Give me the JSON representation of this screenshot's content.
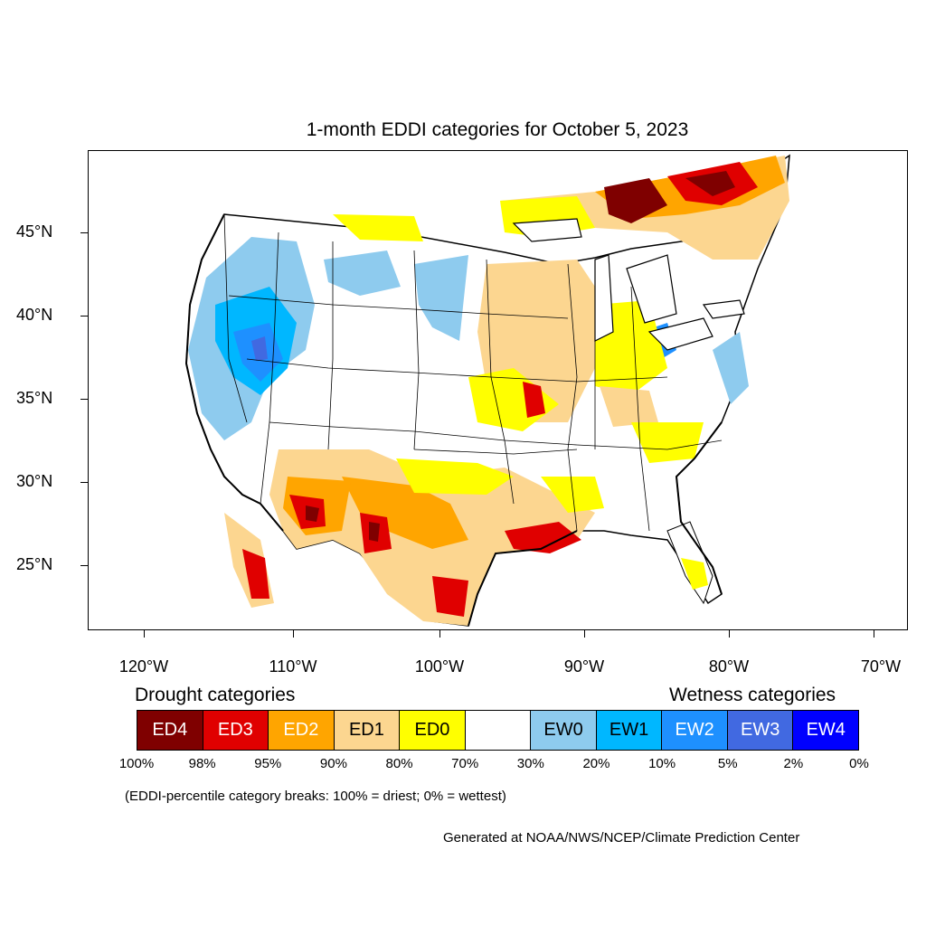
{
  "map": {
    "title": "1-month EDDI categories for October 5, 2023",
    "lat_labels": [
      "45°N",
      "40°N",
      "35°N",
      "30°N",
      "25°N"
    ],
    "lon_labels": [
      "120°W",
      "110°W",
      "100°W",
      "90°W",
      "80°W",
      "70°W"
    ],
    "region": "contiguous United States",
    "colors": {
      "ED4": "#7f0000",
      "ED3": "#e00000",
      "ED2": "#ffa500",
      "ED1": "#fcd690",
      "ED0": "#ffff00",
      "neutral": "#ffffff",
      "EW0": "#8ecbee",
      "EW1": "#00b7ff",
      "EW2": "#1e90ff",
      "EW3": "#4169e1",
      "EW4": "#0000ff"
    }
  },
  "legend": {
    "drought_heading": "Drought categories",
    "wetness_heading": "Wetness categories",
    "categories": [
      {
        "label": "ED4",
        "color": "#7f0000",
        "text_color": "#ffffff"
      },
      {
        "label": "ED3",
        "color": "#e00000",
        "text_color": "#ffffff"
      },
      {
        "label": "ED2",
        "color": "#ffa500",
        "text_color": "#ffffff"
      },
      {
        "label": "ED1",
        "color": "#fcd690",
        "text_color": "#000000"
      },
      {
        "label": "ED0",
        "color": "#ffff00",
        "text_color": "#000000"
      },
      {
        "label": "",
        "color": "#ffffff",
        "text_color": "#000000"
      },
      {
        "label": "EW0",
        "color": "#8ecbee",
        "text_color": "#000000"
      },
      {
        "label": "EW1",
        "color": "#00b7ff",
        "text_color": "#000000"
      },
      {
        "label": "EW2",
        "color": "#1e90ff",
        "text_color": "#ffffff"
      },
      {
        "label": "EW3",
        "color": "#4169e1",
        "text_color": "#ffffff"
      },
      {
        "label": "EW4",
        "color": "#0000ff",
        "text_color": "#ffffff"
      }
    ],
    "breaks": [
      "100%",
      "98%",
      "95%",
      "90%",
      "80%",
      "70%",
      "30%",
      "20%",
      "10%",
      "5%",
      "2%",
      "0%"
    ],
    "note": "(EDDI-percentile category breaks: 100% = driest; 0% = wettest)"
  },
  "credit": "Generated at NOAA/NWS/NCEP/Climate Prediction Center"
}
